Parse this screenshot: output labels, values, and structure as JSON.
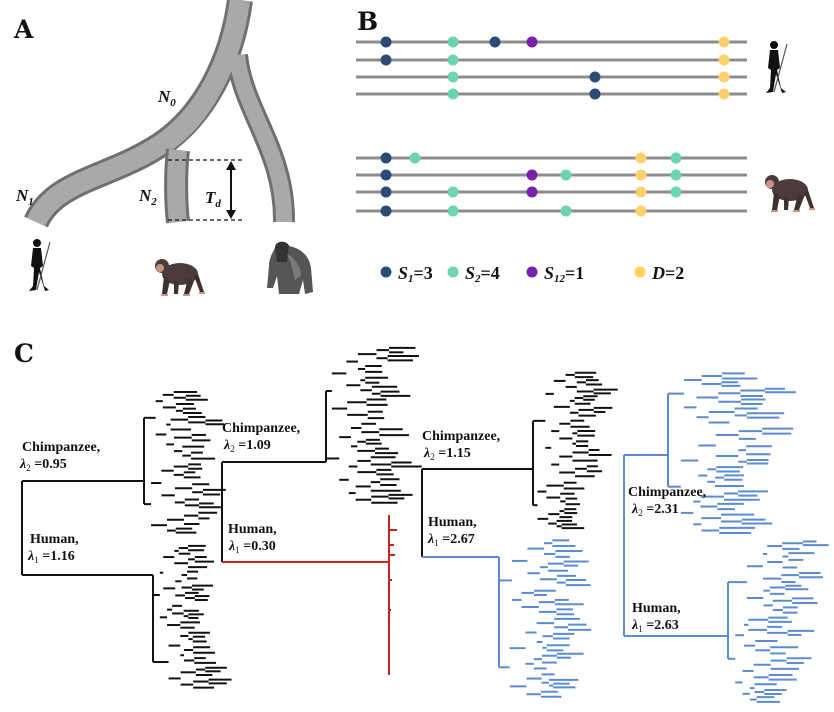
{
  "panels": {
    "a": "A",
    "b": "B",
    "c": "C"
  },
  "panel_a": {
    "n0": {
      "symbol": "N",
      "sub": "0"
    },
    "n1": {
      "symbol": "N",
      "sub": "1"
    },
    "n2": {
      "symbol": "N",
      "sub": "2"
    },
    "td": {
      "symbol": "T",
      "sub": "d"
    },
    "figures": [
      "human-icon",
      "chimpanzee-icon",
      "gorilla-icon"
    ]
  },
  "panel_b": {
    "colors": {
      "S1": "#2b4b76",
      "S2": "#6cd5b0",
      "S12": "#7a1fa8",
      "D": "#fcd16c",
      "line": "#8c8c8c"
    },
    "legend": [
      {
        "symbol": "S",
        "sub": "1",
        "value": "=3",
        "key": "S1"
      },
      {
        "symbol": "S",
        "sub": "2",
        "value": "=4",
        "key": "S2"
      },
      {
        "symbol": "S",
        "sub": "12",
        "value": "=1",
        "key": "S12"
      },
      {
        "symbol": "D",
        "sub": "",
        "value": "=2",
        "key": "D"
      }
    ],
    "groups": [
      "human-icon",
      "chimpanzee-icon"
    ]
  },
  "panel_c": {
    "trees": [
      {
        "chimp": {
          "name": "Chimpanzee,",
          "lambda": "λ",
          "sub": "2",
          "value": " =0.95"
        },
        "human": {
          "name": "Human,",
          "lambda": "λ",
          "sub": "1",
          "value": " =1.16"
        },
        "chimp_color": "#111111",
        "human_color": "#111111"
      },
      {
        "chimp": {
          "name": "Chimpanzee,",
          "lambda": "λ",
          "sub": "2",
          "value": " =1.09"
        },
        "human": {
          "name": "Human,",
          "lambda": "λ",
          "sub": "1",
          "value": " =0.30"
        },
        "chimp_color": "#111111",
        "human_color": "#c0281e"
      },
      {
        "chimp": {
          "name": "Chimpanzee,",
          "lambda": "λ",
          "sub": "2",
          "value": " =1.15"
        },
        "human": {
          "name": "Human,",
          "lambda": "λ",
          "sub": "1",
          "value": " =2.67"
        },
        "chimp_color": "#111111",
        "human_color": "#5b8bd0"
      },
      {
        "chimp": {
          "name": "Chimpanzee,",
          "lambda": "λ",
          "sub": "2",
          "value": " =2.31"
        },
        "human": {
          "name": "Human,",
          "lambda": "λ",
          "sub": "1",
          "value": " =2.63"
        },
        "chimp_color": "#5b8bd0",
        "human_color": "#5b8bd0"
      }
    ]
  }
}
